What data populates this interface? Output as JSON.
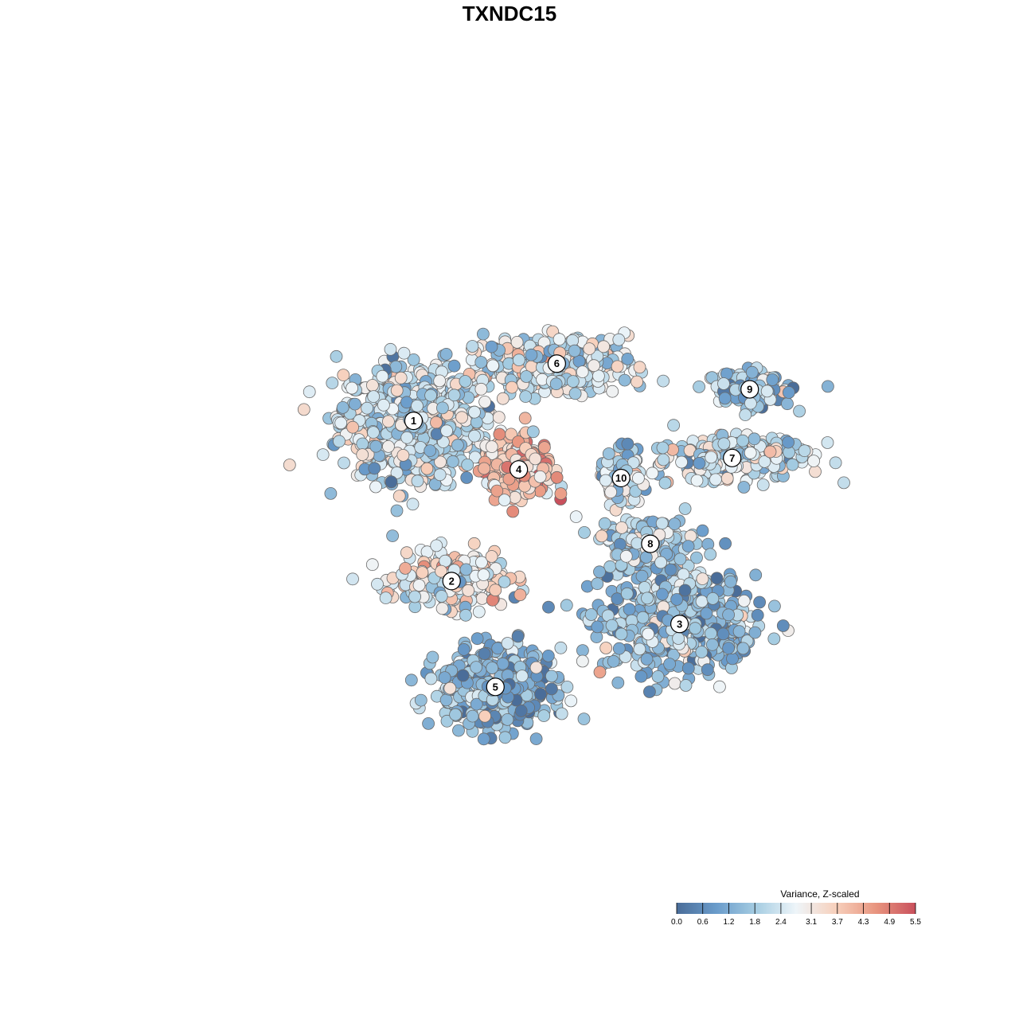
{
  "chart_data": {
    "type": "scatter",
    "title": "TXNDC15",
    "xlabel": "",
    "ylabel": "",
    "grid": false,
    "axes_visible": false,
    "legend": {
      "title": "Variance, Z-scaled",
      "placement": "bottom-right",
      "ticks": [
        "0.0",
        "0.6",
        "1.2",
        "1.8",
        "2.4",
        "3.1",
        "3.7",
        "4.3",
        "4.9",
        "5.5"
      ],
      "range": [
        0.0,
        5.5
      ],
      "colors": [
        "#4a6d99",
        "#6a9ccb",
        "#a6cde2",
        "#eef5f9",
        "#f7d0bc",
        "#e8957f",
        "#c9505c"
      ]
    },
    "clusters": [
      {
        "label": "1",
        "center": [
          -2.05,
          1.55
        ],
        "spread": [
          1.25,
          1.0
        ],
        "mean_value": 2.2,
        "n": 700
      },
      {
        "label": "2",
        "center": [
          -1.4,
          -1.25
        ],
        "spread": [
          0.9,
          0.45
        ],
        "mean_value": 2.8,
        "n": 260
      },
      {
        "label": "3",
        "center": [
          2.5,
          -2.0
        ],
        "spread": [
          1.3,
          0.85
        ],
        "mean_value": 1.5,
        "n": 520
      },
      {
        "label": "4",
        "center": [
          -0.25,
          0.7
        ],
        "spread": [
          0.6,
          0.5
        ],
        "mean_value": 4.0,
        "n": 260
      },
      {
        "label": "5",
        "center": [
          -0.65,
          -3.1
        ],
        "spread": [
          0.95,
          0.65
        ],
        "mean_value": 1.3,
        "n": 520
      },
      {
        "label": "6",
        "center": [
          0.4,
          2.55
        ],
        "spread": [
          1.2,
          0.45
        ],
        "mean_value": 2.4,
        "n": 420
      },
      {
        "label": "7",
        "center": [
          3.4,
          0.9
        ],
        "spread": [
          1.35,
          0.4
        ],
        "mean_value": 2.3,
        "n": 260
      },
      {
        "label": "8",
        "center": [
          2.0,
          -0.6
        ],
        "spread": [
          0.75,
          0.45
        ],
        "mean_value": 2.0,
        "n": 170
      },
      {
        "label": "9",
        "center": [
          3.7,
          2.1
        ],
        "spread": [
          0.75,
          0.3
        ],
        "mean_value": 1.6,
        "n": 150
      },
      {
        "label": "10",
        "center": [
          1.5,
          0.55
        ],
        "spread": [
          0.35,
          0.5
        ],
        "mean_value": 2.2,
        "n": 90
      }
    ],
    "xlim": [
      -6.4,
      6.4
    ],
    "ylim": [
      -6.4,
      6.4
    ]
  }
}
